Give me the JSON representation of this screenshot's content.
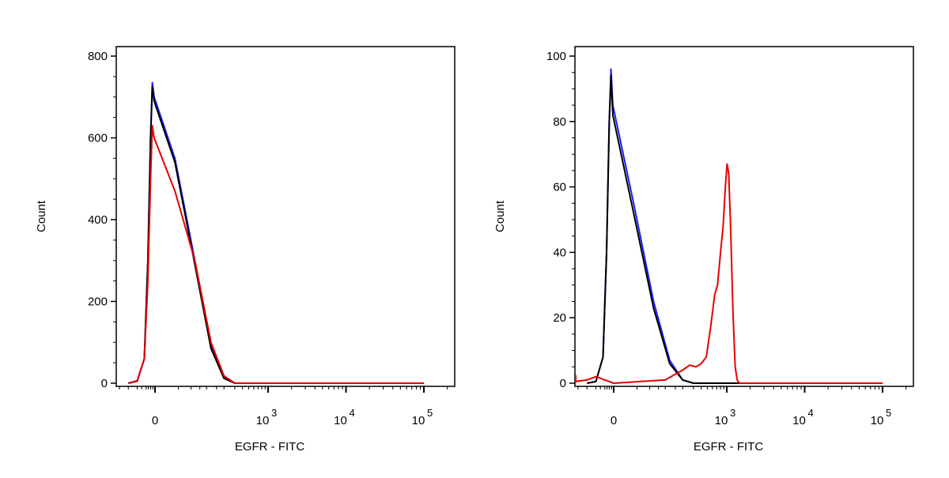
{
  "chart_data": [
    {
      "type": "line",
      "xlabel": "EGFR - FITC",
      "ylabel": "Count",
      "ylim": [
        0,
        800
      ],
      "y_ticks": [
        0,
        200,
        400,
        600,
        800
      ],
      "x_scale": "biexponential",
      "x_ticks": [
        {
          "value": 0,
          "base": "0",
          "exp": ""
        },
        {
          "value": 1000,
          "base": "10",
          "exp": "3"
        },
        {
          "value": 10000,
          "base": "10",
          "exp": "4"
        },
        {
          "value": 100000,
          "base": "10",
          "exp": "5"
        }
      ],
      "grid": false,
      "series": [
        {
          "color": "#1a1aff",
          "points": [
            [
              -300,
              0
            ],
            [
              -200,
              5
            ],
            [
              -120,
              60
            ],
            [
              -80,
              300
            ],
            [
              -50,
              600
            ],
            [
              -30,
              735
            ],
            [
              -10,
              700
            ],
            [
              20,
              550
            ],
            [
              60,
              300
            ],
            [
              120,
              90
            ],
            [
              200,
              15
            ],
            [
              300,
              0
            ],
            [
              100000,
              0
            ]
          ]
        },
        {
          "color": "#000000",
          "points": [
            [
              -300,
              0
            ],
            [
              -200,
              5
            ],
            [
              -120,
              60
            ],
            [
              -80,
              300
            ],
            [
              -50,
              600
            ],
            [
              -30,
              725
            ],
            [
              -10,
              690
            ],
            [
              20,
              540
            ],
            [
              60,
              290
            ],
            [
              120,
              85
            ],
            [
              200,
              12
            ],
            [
              300,
              0
            ],
            [
              100000,
              0
            ]
          ]
        },
        {
          "color": "#e60000",
          "points": [
            [
              -300,
              0
            ],
            [
              -200,
              6
            ],
            [
              -120,
              60
            ],
            [
              -80,
              250
            ],
            [
              -50,
              500
            ],
            [
              -30,
              630
            ],
            [
              -10,
              600
            ],
            [
              20,
              470
            ],
            [
              60,
              300
            ],
            [
              120,
              100
            ],
            [
              200,
              18
            ],
            [
              300,
              0
            ],
            [
              100000,
              0
            ]
          ]
        }
      ]
    },
    {
      "type": "line",
      "xlabel": "EGFR - FITC",
      "ylabel": "Count",
      "ylim": [
        0,
        100
      ],
      "y_ticks": [
        0,
        20,
        40,
        60,
        80,
        100
      ],
      "x_scale": "biexponential",
      "x_ticks": [
        {
          "value": 0,
          "base": "0",
          "exp": ""
        },
        {
          "value": 1000,
          "base": "10",
          "exp": "3"
        },
        {
          "value": 10000,
          "base": "10",
          "exp": "4"
        },
        {
          "value": 100000,
          "base": "10",
          "exp": "5"
        }
      ],
      "grid": false,
      "series": [
        {
          "color": "#1a1aff",
          "points": [
            [
              -300,
              0
            ],
            [
              -200,
              0.5
            ],
            [
              -120,
              8
            ],
            [
              -80,
              40
            ],
            [
              -50,
              80
            ],
            [
              -30,
              96
            ],
            [
              -10,
              85
            ],
            [
              20,
              55
            ],
            [
              60,
              25
            ],
            [
              120,
              7
            ],
            [
              200,
              1
            ],
            [
              300,
              0
            ],
            [
              100000,
              0
            ]
          ]
        },
        {
          "color": "#000000",
          "points": [
            [
              -300,
              0
            ],
            [
              -200,
              0.5
            ],
            [
              -120,
              8
            ],
            [
              -80,
              40
            ],
            [
              -50,
              80
            ],
            [
              -30,
              94
            ],
            [
              -10,
              82
            ],
            [
              20,
              52
            ],
            [
              60,
              23
            ],
            [
              120,
              6
            ],
            [
              200,
              1
            ],
            [
              300,
              0
            ],
            [
              100000,
              0
            ]
          ]
        },
        {
          "color": "#e60000",
          "points": [
            [
              -600,
              2.5
            ],
            [
              -450,
              0.5
            ],
            [
              -300,
              1
            ],
            [
              -200,
              2
            ],
            [
              -100,
              1
            ],
            [
              0,
              0
            ],
            [
              100,
              1
            ],
            [
              200,
              4
            ],
            [
              260,
              5.5
            ],
            [
              330,
              5
            ],
            [
              400,
              6
            ],
            [
              480,
              8
            ],
            [
              560,
              17
            ],
            [
              650,
              27
            ],
            [
              720,
              30
            ],
            [
              800,
              40
            ],
            [
              880,
              48
            ],
            [
              950,
              60
            ],
            [
              1010,
              67
            ],
            [
              1060,
              64
            ],
            [
              1120,
              48
            ],
            [
              1200,
              22
            ],
            [
              1280,
              5
            ],
            [
              1360,
              1
            ],
            [
              1450,
              0
            ],
            [
              100000,
              0
            ]
          ]
        }
      ]
    }
  ]
}
